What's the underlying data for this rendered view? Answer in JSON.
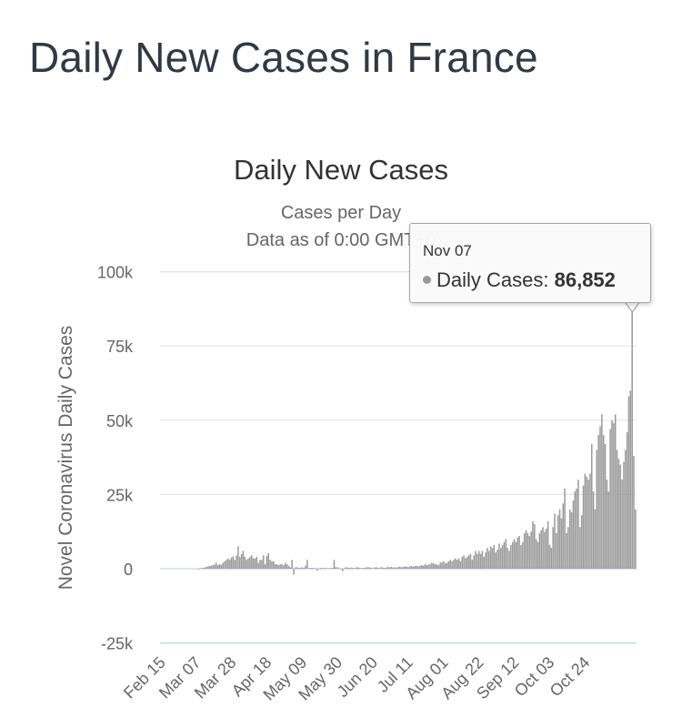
{
  "page": {
    "title": "Daily New Cases in France"
  },
  "colors": {
    "bar": "#999999",
    "grid": "#e6e6e6",
    "text": "#666666",
    "title": "#333333",
    "zero_line": "#ccd6eb"
  },
  "tooltip": {
    "date": "Nov 07",
    "label": "Daily Cases:",
    "value": "86,852"
  },
  "chart_data": {
    "type": "bar",
    "title": "Daily New Cases",
    "subtitle_lines": [
      "Cases per Day",
      "Data as of 0:00 GMT+0"
    ],
    "ylabel": "Novel Coronavirus Daily Cases",
    "ylim": [
      -25000,
      100000
    ],
    "yticks": [
      -25000,
      0,
      25000,
      50000,
      75000,
      100000
    ],
    "ytick_labels": [
      "-25k",
      "0",
      "25k",
      "50k",
      "75k",
      "100k"
    ],
    "x_tick_labels": [
      "Feb 15",
      "Mar 07",
      "Mar 28",
      "Apr 18",
      "May 09",
      "May 30",
      "Jun 20",
      "Jul 11",
      "Aug 01",
      "Aug 22",
      "Sep 12",
      "Oct 03",
      "Oct 24"
    ],
    "x_start_date": "2020-02-15",
    "grid": true,
    "legend": "none",
    "highlight": {
      "date": "Nov 07",
      "value": 86852
    },
    "series": [
      {
        "values": [
          0,
          0,
          0,
          0,
          0,
          0,
          0,
          0,
          0,
          0,
          0,
          0,
          0,
          0,
          0,
          0,
          0,
          0,
          0,
          0,
          0,
          0,
          50,
          100,
          200,
          300,
          400,
          600,
          800,
          1000,
          1000,
          1200,
          1400,
          2000,
          1200,
          1500,
          1300,
          2000,
          2500,
          3000,
          3500,
          3000,
          3800,
          4200,
          3000,
          4500,
          7500,
          4000,
          5000,
          6000,
          4000,
          3000,
          3500,
          4000,
          4500,
          3500,
          3500,
          4000,
          2000,
          3000,
          3000,
          4500,
          1500,
          4300,
          5200,
          3000,
          2500,
          2500,
          1500,
          1500,
          1200,
          1500,
          1500,
          1200,
          2000,
          1500,
          1000,
          500,
          3000,
          -2000,
          500,
          500,
          300,
          300,
          500,
          300,
          1000,
          3000,
          200,
          300,
          300,
          200,
          200,
          -600,
          200,
          300,
          200,
          300,
          200,
          200,
          200,
          200,
          300,
          3000,
          500,
          500,
          200,
          100,
          -800,
          200,
          500,
          400,
          300,
          400,
          300,
          200,
          400,
          500,
          300,
          200,
          300,
          300,
          400,
          500,
          500,
          300,
          200,
          400,
          500,
          300,
          200,
          500,
          400,
          300,
          400,
          600,
          500,
          600,
          400,
          500,
          400,
          600,
          700,
          500,
          600,
          800,
          700,
          600,
          800,
          900,
          700,
          900,
          1000,
          800,
          1000,
          1200,
          1000,
          1500,
          1200,
          1400,
          1600,
          2000,
          1800,
          1500,
          1400,
          1200,
          2000,
          2200,
          2500,
          1800,
          2000,
          2500,
          3000,
          2500,
          3000,
          3500,
          3000,
          3500,
          2500,
          4000,
          4500,
          3500,
          4000,
          4500,
          5000,
          3000,
          4500,
          6000,
          5000,
          6000,
          5000,
          6000,
          4000,
          5500,
          7000,
          6000,
          7500,
          7000,
          8000,
          5500,
          6500,
          8500,
          7000,
          8000,
          9000,
          10000,
          7000,
          6000,
          8000,
          9000,
          10000,
          9000,
          10500,
          11000,
          8000,
          9000,
          12000,
          13000,
          12000,
          11000,
          12500,
          16000,
          15000,
          10000,
          9000,
          12000,
          13000,
          14000,
          12500,
          13500,
          16000,
          8000,
          7000,
          14000,
          18500,
          12000,
          18000,
          20000,
          17000,
          22000,
          27000,
          12000,
          14000,
          20000,
          19000,
          23000,
          26000,
          27000,
          30000,
          14000,
          18000,
          28000,
          32000,
          31000,
          30000,
          32000,
          42000,
          26000,
          20000,
          40000,
          45000,
          48000,
          52000,
          45000,
          42000,
          30000,
          26000,
          47000,
          50000,
          49000,
          52000,
          40000,
          37000,
          35000,
          30000,
          36000,
          40000,
          46000,
          58000,
          60000,
          86852,
          38000,
          20000
        ]
      }
    ]
  }
}
